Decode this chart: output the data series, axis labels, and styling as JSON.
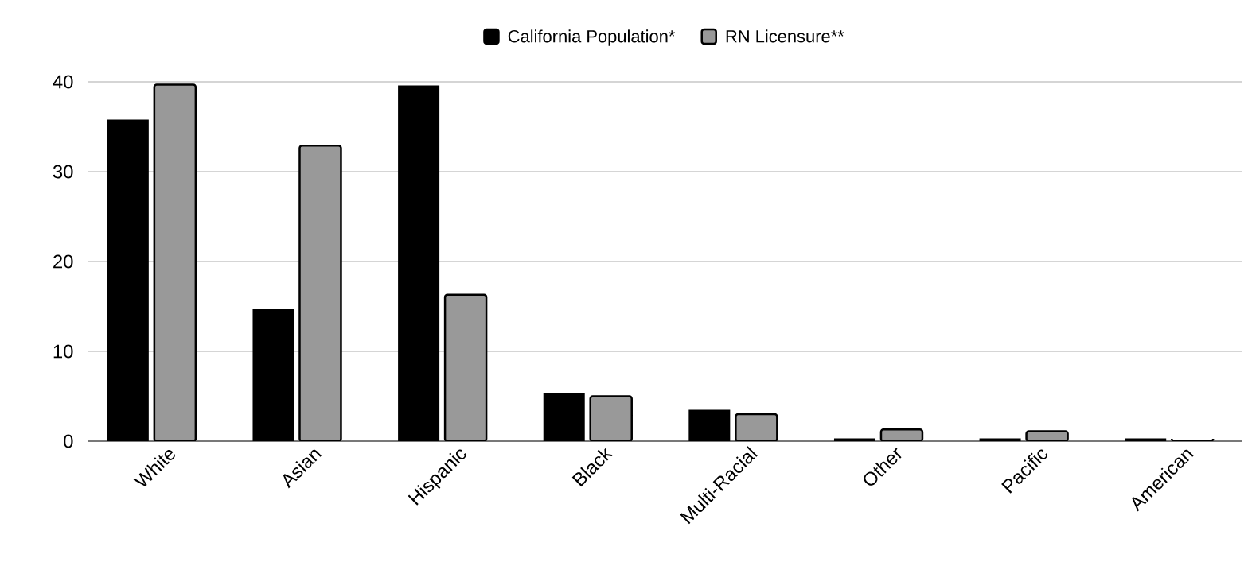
{
  "chart_data": {
    "type": "bar",
    "categories": [
      "White",
      "Asian",
      "Hispanic",
      "Black",
      "Multi-Racial",
      "Other",
      "Pacific",
      "American"
    ],
    "series": [
      {
        "name": "California Population*",
        "color": "#000000",
        "values": [
          35.8,
          14.7,
          39.6,
          5.4,
          3.5,
          0.3,
          0.3,
          0.3
        ]
      },
      {
        "name": "RN Licensure**",
        "color": "#999999",
        "values": [
          39.7,
          32.9,
          16.3,
          5.0,
          3.0,
          1.3,
          1.1,
          0
        ]
      }
    ],
    "ylim": [
      0,
      40
    ],
    "yticks": [
      0,
      10,
      20,
      30,
      40
    ],
    "grid": "y",
    "legend": "top"
  }
}
